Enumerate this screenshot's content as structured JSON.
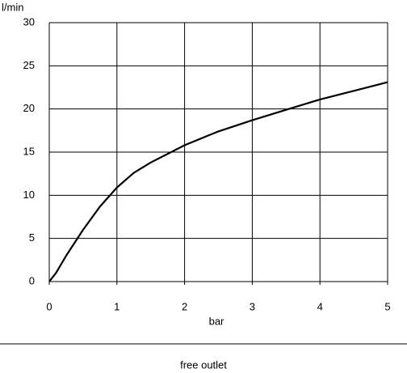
{
  "chart_data": {
    "type": "line",
    "y_label": "l/min",
    "x_label": "bar",
    "caption": "free outlet",
    "x": [
      0,
      0.1,
      0.25,
      0.5,
      0.75,
      1,
      1.25,
      1.5,
      2,
      2.5,
      3,
      3.5,
      4,
      4.5,
      5
    ],
    "values": [
      0,
      1,
      3,
      6,
      8.7,
      10.9,
      12.6,
      13.8,
      15.8,
      17.4,
      18.7,
      19.9,
      21.1,
      22.1,
      23.1
    ],
    "color": "#000000",
    "xlim": [
      0,
      5
    ],
    "xticks": [
      0,
      1,
      2,
      3,
      4,
      5
    ],
    "ylim": [
      0,
      30
    ],
    "yticks": [
      0,
      5,
      10,
      15,
      20,
      25,
      30
    ],
    "grid": true
  }
}
